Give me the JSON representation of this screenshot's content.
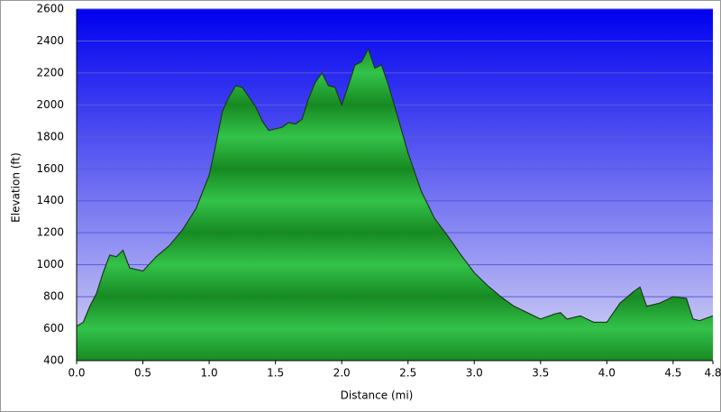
{
  "chart_data": {
    "type": "area",
    "x_label": "Distance (mi)",
    "y_label": "Elevation (ft)",
    "x": [
      0.0,
      0.05,
      0.1,
      0.15,
      0.2,
      0.25,
      0.3,
      0.35,
      0.4,
      0.45,
      0.5,
      0.6,
      0.7,
      0.8,
      0.9,
      1.0,
      1.05,
      1.1,
      1.15,
      1.2,
      1.25,
      1.3,
      1.35,
      1.4,
      1.45,
      1.5,
      1.55,
      1.6,
      1.65,
      1.7,
      1.75,
      1.8,
      1.85,
      1.9,
      1.95,
      2.0,
      2.05,
      2.1,
      2.15,
      2.2,
      2.25,
      2.3,
      2.35,
      2.4,
      2.5,
      2.6,
      2.7,
      2.8,
      2.9,
      3.0,
      3.1,
      3.2,
      3.3,
      3.4,
      3.5,
      3.6,
      3.65,
      3.7,
      3.8,
      3.9,
      4.0,
      4.1,
      4.2,
      4.25,
      4.3,
      4.4,
      4.5,
      4.6,
      4.65,
      4.7,
      4.8
    ],
    "values": [
      615,
      640,
      740,
      820,
      950,
      1060,
      1050,
      1090,
      980,
      970,
      960,
      1050,
      1120,
      1220,
      1350,
      1560,
      1750,
      1960,
      2050,
      2120,
      2110,
      2050,
      1990,
      1900,
      1840,
      1850,
      1860,
      1890,
      1880,
      1910,
      2040,
      2140,
      2200,
      2120,
      2110,
      2000,
      2120,
      2250,
      2270,
      2350,
      2230,
      2250,
      2130,
      1990,
      1700,
      1460,
      1290,
      1180,
      1060,
      950,
      870,
      800,
      740,
      700,
      660,
      690,
      700,
      660,
      680,
      640,
      640,
      760,
      830,
      860,
      740,
      760,
      800,
      790,
      660,
      650,
      680
    ],
    "color": "#1f9a2f",
    "xlim": [
      0,
      4.8
    ],
    "ylim": [
      400,
      2600
    ],
    "xticks": [
      {
        "value": 0,
        "label": "0.0"
      },
      0.5,
      {
        "value": 1,
        "label": "1.0"
      },
      1.5,
      {
        "value": 2,
        "label": "2.0"
      },
      2.5,
      {
        "value": 3,
        "label": "3.0"
      },
      3.5,
      {
        "value": 4,
        "label": "4.0"
      },
      4.5,
      4.8
    ],
    "yticks": [
      400,
      600,
      800,
      1000,
      1200,
      1400,
      1600,
      1800,
      2000,
      2200,
      2400,
      2600
    ],
    "grid": true
  }
}
